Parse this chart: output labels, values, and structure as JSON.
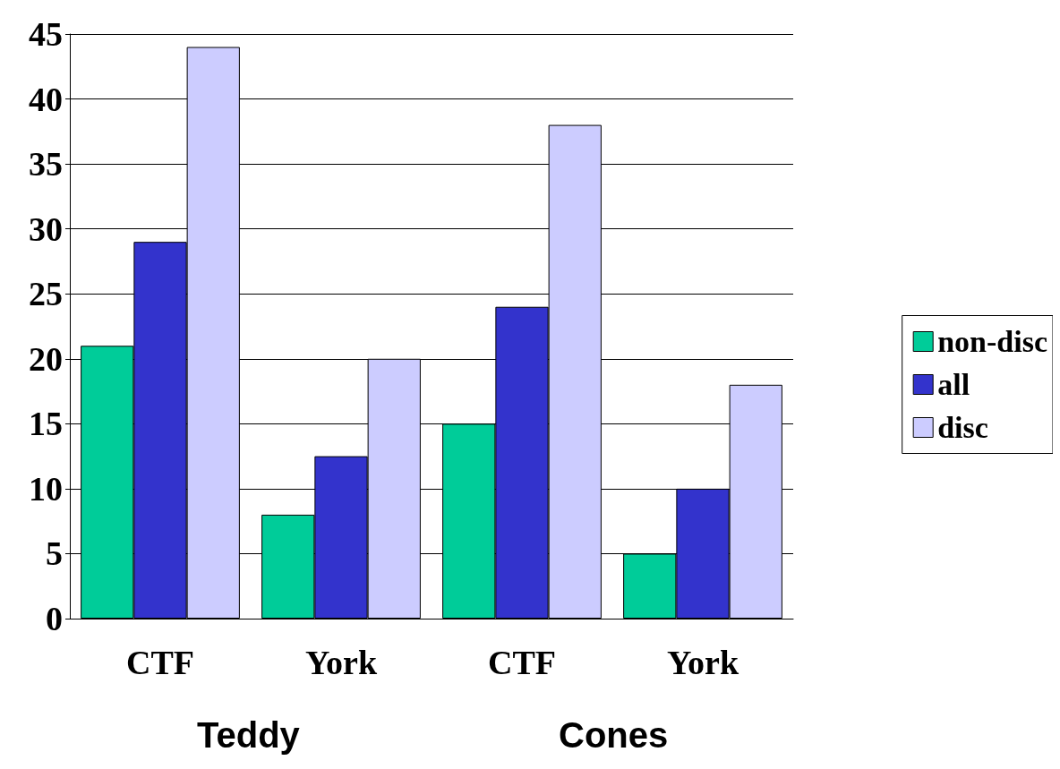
{
  "chart_data": {
    "type": "bar",
    "categories": [
      "CTF",
      "York",
      "CTF",
      "York"
    ],
    "series": [
      {
        "name": "non-disc",
        "color": "#00cc99",
        "values": [
          21,
          8,
          15,
          5
        ]
      },
      {
        "name": "all",
        "color": "#3333cc",
        "values": [
          29,
          12.5,
          24,
          10
        ]
      },
      {
        "name": "disc",
        "color": "#ccccff",
        "values": [
          44,
          20,
          38,
          18
        ]
      }
    ],
    "annotations": [
      "Teddy",
      "Cones"
    ],
    "ylim": [
      0,
      45
    ],
    "yticks": [
      0,
      5,
      10,
      15,
      20,
      25,
      30,
      35,
      40,
      45
    ],
    "grid": "y",
    "legend": "right"
  }
}
